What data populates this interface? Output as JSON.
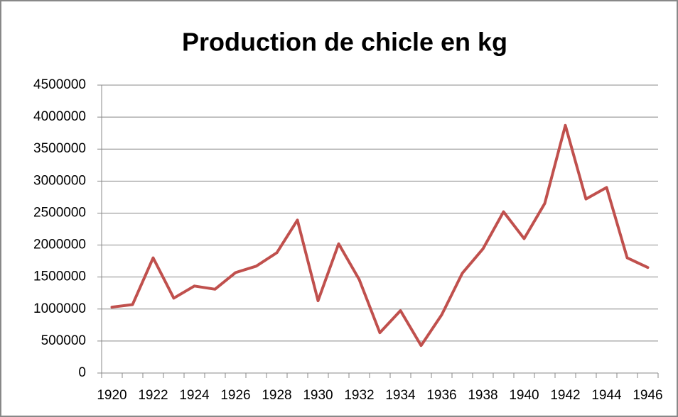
{
  "chart_data": {
    "type": "line",
    "title": "Production de chicle en kg",
    "categories": [
      "1920",
      null,
      "1922",
      null,
      "1924",
      null,
      "1926",
      null,
      "1928",
      null,
      "1930",
      null,
      "1932",
      null,
      "1934",
      null,
      "1936",
      null,
      "1938",
      null,
      "1940",
      null,
      "1942",
      null,
      "1944",
      null,
      "1946"
    ],
    "series": [
      {
        "name": "Production",
        "color": "#c0504d",
        "values": [
          1030000,
          1070000,
          1800000,
          1170000,
          1360000,
          1310000,
          1570000,
          1670000,
          1880000,
          2390000,
          1130000,
          2020000,
          1460000,
          630000,
          975000,
          430000,
          910000,
          1560000,
          1940000,
          2520000,
          2100000,
          2650000,
          3870000,
          2720000,
          2900000,
          1800000,
          1650000
        ]
      }
    ],
    "ylim": [
      0,
      4500000
    ],
    "yticks": [
      0,
      500000,
      1000000,
      1500000,
      2000000,
      2500000,
      3000000,
      3500000,
      4000000,
      4500000
    ],
    "grid": true
  }
}
